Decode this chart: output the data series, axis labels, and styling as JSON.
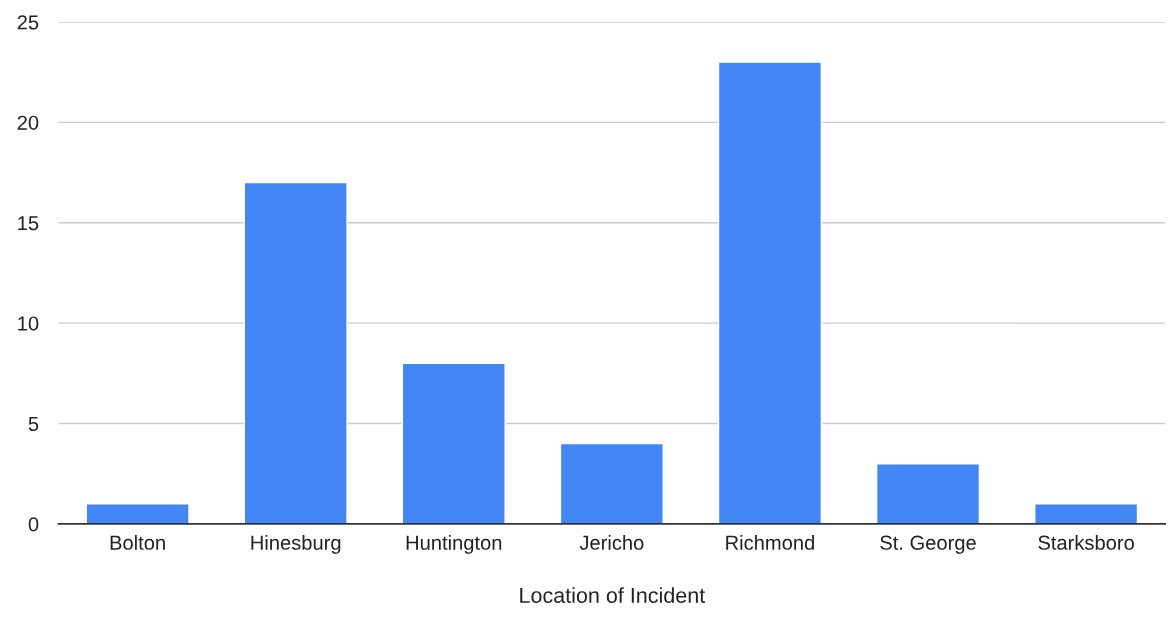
{
  "chart_data": {
    "type": "bar",
    "xlabel": "Location of Incident",
    "categories": [
      "Bolton",
      "Hinesburg",
      "Huntington",
      "Jericho",
      "Richmond",
      "St. George",
      "Starksboro"
    ],
    "values": [
      1,
      17,
      8,
      4,
      23,
      3,
      1
    ],
    "color": "#4285f4",
    "ylim": [
      0,
      25
    ],
    "yticks": [
      0,
      5,
      10,
      15,
      20,
      25
    ],
    "grid": "y",
    "legend": false
  }
}
